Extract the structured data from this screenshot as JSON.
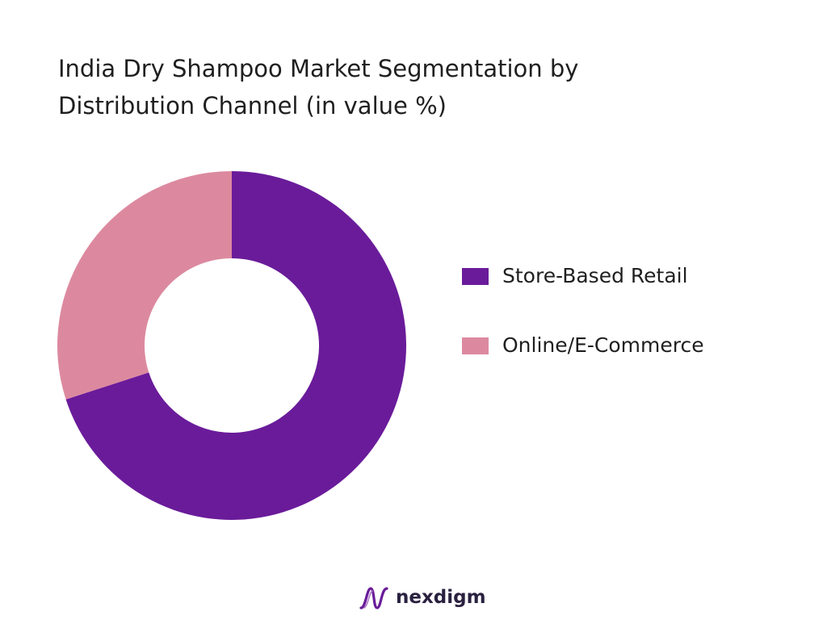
{
  "chart_data": {
    "type": "pie",
    "style": "donut",
    "title_lines": [
      "India Dry Shampoo Market Segmentation by",
      "Distribution Channel (in value %)"
    ],
    "categories": [
      "Store-Based Retail",
      "Online/E-Commerce"
    ],
    "values": [
      70,
      30
    ],
    "colors": [
      "#6a1b9a",
      "#dc899f"
    ],
    "legend_position": "right",
    "start_angle": "top",
    "direction": "clockwise"
  },
  "branding": {
    "logo_text": "nexdigm",
    "logo_icon": "nexdigm-wave-icon",
    "logo_color": "#6a1b9a"
  }
}
